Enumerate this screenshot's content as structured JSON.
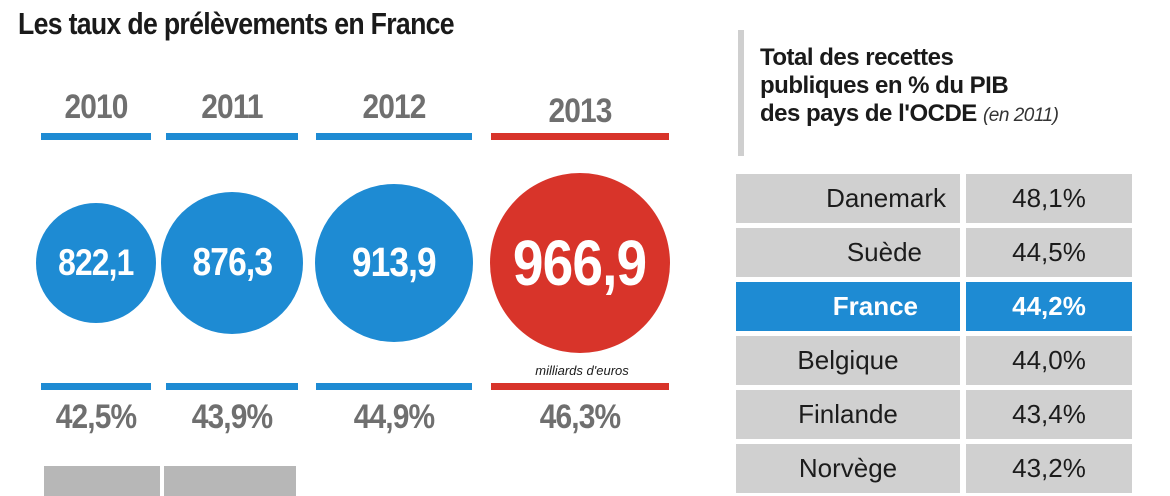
{
  "left": {
    "title": "Les taux de prélèvements en France",
    "unit_label": "milliards d'euros"
  },
  "colors": {
    "blue": "#1e8bd3",
    "red": "#d8342a",
    "grey_text": "#6f6f6f",
    "table_bg": "#d0d0d0",
    "highlight": "#1e8bd3"
  },
  "right": {
    "title_lines": [
      "Total des recettes",
      "publiques en % du PIB",
      "des pays de l'OCDE"
    ],
    "title_note": "(en 2011)"
  },
  "chart_data": [
    {
      "type": "bubble",
      "title": "Les taux de prélèvements en France",
      "categories": [
        "2010",
        "2011",
        "2012",
        "2013"
      ],
      "series": [
        {
          "values": [
            822.1,
            876.3,
            913.9,
            966.9
          ],
          "labels": [
            "822,1",
            "876,3",
            "913,9",
            "966,9"
          ],
          "unit": "milliards d'euros"
        },
        {
          "values": [
            42.5,
            43.9,
            44.9,
            46.3
          ],
          "labels": [
            "42,5%",
            "43,9%",
            "44,9%",
            "46,3%"
          ]
        }
      ],
      "highlight_category": "2013"
    },
    {
      "type": "table",
      "title": "Total des recettes publiques en % du PIB des pays de l'OCDE (en 2011)",
      "rows": [
        {
          "country": "Danemark",
          "value": "48,1%"
        },
        {
          "country": "Suède",
          "value": "44,5%"
        },
        {
          "country": "France",
          "value": "44,2%",
          "highlight": true
        },
        {
          "country": "Belgique",
          "value": "44,0%"
        },
        {
          "country": "Finlande",
          "value": "43,4%"
        },
        {
          "country": "Norvège",
          "value": "43,2%"
        }
      ]
    }
  ]
}
